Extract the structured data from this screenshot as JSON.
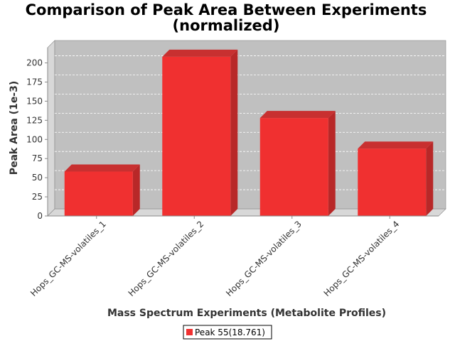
{
  "chart_data": {
    "type": "bar",
    "title_line1": "Comparison of Peak Area Between Experiments",
    "title_line2": "(normalized)",
    "xlabel": "Mass Spectrum Experiments (Metabolite Profiles)",
    "ylabel": "Peak Area (1e-3)",
    "categories": [
      "Hops_GC-MS-volatiles_1",
      "Hops_GC-MS-volatiles_2",
      "Hops_GC-MS-volatiles_3",
      "Hops_GC-MS-volatiles_4"
    ],
    "series": [
      {
        "name": "Peak 55(18.761)",
        "values": [
          58,
          208,
          128,
          88
        ],
        "color": "#f03030"
      }
    ],
    "ylim": [
      0,
      220
    ],
    "yticks": [
      0,
      25,
      50,
      75,
      100,
      125,
      150,
      175,
      200
    ],
    "grid": true,
    "legend_position": "bottom-center",
    "colors": {
      "plot_bg": "#c0c0c0",
      "bar": "#f03030",
      "bar_side": "#b82828",
      "bar_top": "#c83030"
    }
  }
}
